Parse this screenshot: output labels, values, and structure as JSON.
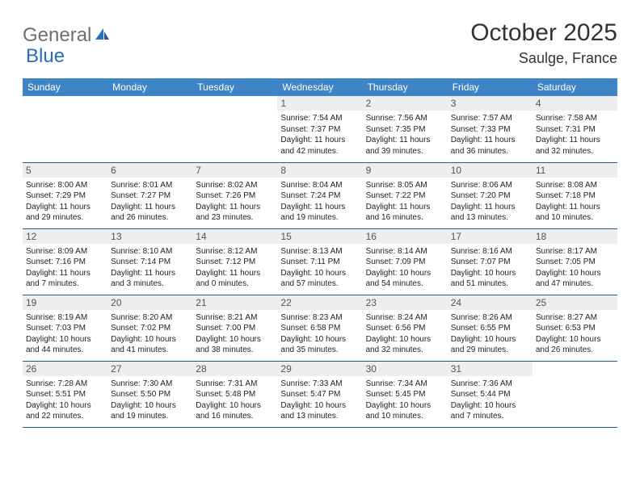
{
  "logo": {
    "general": "General",
    "blue": "Blue"
  },
  "title": "October 2025",
  "location": "Saulge, France",
  "days": [
    "Sunday",
    "Monday",
    "Tuesday",
    "Wednesday",
    "Thursday",
    "Friday",
    "Saturday"
  ],
  "colors": {
    "header_bg": "#3d85c6",
    "border": "#2a5a8e",
    "daynum_bg": "#eeeeee",
    "text": "#222222",
    "logo_gray": "#6e6e6e",
    "logo_blue": "#2a6db8"
  },
  "weeks": [
    [
      null,
      null,
      null,
      {
        "n": "1",
        "r": "7:54 AM",
        "s": "7:37 PM",
        "d": "11 hours and 42 minutes."
      },
      {
        "n": "2",
        "r": "7:56 AM",
        "s": "7:35 PM",
        "d": "11 hours and 39 minutes."
      },
      {
        "n": "3",
        "r": "7:57 AM",
        "s": "7:33 PM",
        "d": "11 hours and 36 minutes."
      },
      {
        "n": "4",
        "r": "7:58 AM",
        "s": "7:31 PM",
        "d": "11 hours and 32 minutes."
      }
    ],
    [
      {
        "n": "5",
        "r": "8:00 AM",
        "s": "7:29 PM",
        "d": "11 hours and 29 minutes."
      },
      {
        "n": "6",
        "r": "8:01 AM",
        "s": "7:27 PM",
        "d": "11 hours and 26 minutes."
      },
      {
        "n": "7",
        "r": "8:02 AM",
        "s": "7:26 PM",
        "d": "11 hours and 23 minutes."
      },
      {
        "n": "8",
        "r": "8:04 AM",
        "s": "7:24 PM",
        "d": "11 hours and 19 minutes."
      },
      {
        "n": "9",
        "r": "8:05 AM",
        "s": "7:22 PM",
        "d": "11 hours and 16 minutes."
      },
      {
        "n": "10",
        "r": "8:06 AM",
        "s": "7:20 PM",
        "d": "11 hours and 13 minutes."
      },
      {
        "n": "11",
        "r": "8:08 AM",
        "s": "7:18 PM",
        "d": "11 hours and 10 minutes."
      }
    ],
    [
      {
        "n": "12",
        "r": "8:09 AM",
        "s": "7:16 PM",
        "d": "11 hours and 7 minutes."
      },
      {
        "n": "13",
        "r": "8:10 AM",
        "s": "7:14 PM",
        "d": "11 hours and 3 minutes."
      },
      {
        "n": "14",
        "r": "8:12 AM",
        "s": "7:12 PM",
        "d": "11 hours and 0 minutes."
      },
      {
        "n": "15",
        "r": "8:13 AM",
        "s": "7:11 PM",
        "d": "10 hours and 57 minutes."
      },
      {
        "n": "16",
        "r": "8:14 AM",
        "s": "7:09 PM",
        "d": "10 hours and 54 minutes."
      },
      {
        "n": "17",
        "r": "8:16 AM",
        "s": "7:07 PM",
        "d": "10 hours and 51 minutes."
      },
      {
        "n": "18",
        "r": "8:17 AM",
        "s": "7:05 PM",
        "d": "10 hours and 47 minutes."
      }
    ],
    [
      {
        "n": "19",
        "r": "8:19 AM",
        "s": "7:03 PM",
        "d": "10 hours and 44 minutes."
      },
      {
        "n": "20",
        "r": "8:20 AM",
        "s": "7:02 PM",
        "d": "10 hours and 41 minutes."
      },
      {
        "n": "21",
        "r": "8:21 AM",
        "s": "7:00 PM",
        "d": "10 hours and 38 minutes."
      },
      {
        "n": "22",
        "r": "8:23 AM",
        "s": "6:58 PM",
        "d": "10 hours and 35 minutes."
      },
      {
        "n": "23",
        "r": "8:24 AM",
        "s": "6:56 PM",
        "d": "10 hours and 32 minutes."
      },
      {
        "n": "24",
        "r": "8:26 AM",
        "s": "6:55 PM",
        "d": "10 hours and 29 minutes."
      },
      {
        "n": "25",
        "r": "8:27 AM",
        "s": "6:53 PM",
        "d": "10 hours and 26 minutes."
      }
    ],
    [
      {
        "n": "26",
        "r": "7:28 AM",
        "s": "5:51 PM",
        "d": "10 hours and 22 minutes."
      },
      {
        "n": "27",
        "r": "7:30 AM",
        "s": "5:50 PM",
        "d": "10 hours and 19 minutes."
      },
      {
        "n": "28",
        "r": "7:31 AM",
        "s": "5:48 PM",
        "d": "10 hours and 16 minutes."
      },
      {
        "n": "29",
        "r": "7:33 AM",
        "s": "5:47 PM",
        "d": "10 hours and 13 minutes."
      },
      {
        "n": "30",
        "r": "7:34 AM",
        "s": "5:45 PM",
        "d": "10 hours and 10 minutes."
      },
      {
        "n": "31",
        "r": "7:36 AM",
        "s": "5:44 PM",
        "d": "10 hours and 7 minutes."
      },
      null
    ]
  ],
  "labels": {
    "sunrise": "Sunrise:",
    "sunset": "Sunset:",
    "daylight": "Daylight:"
  }
}
